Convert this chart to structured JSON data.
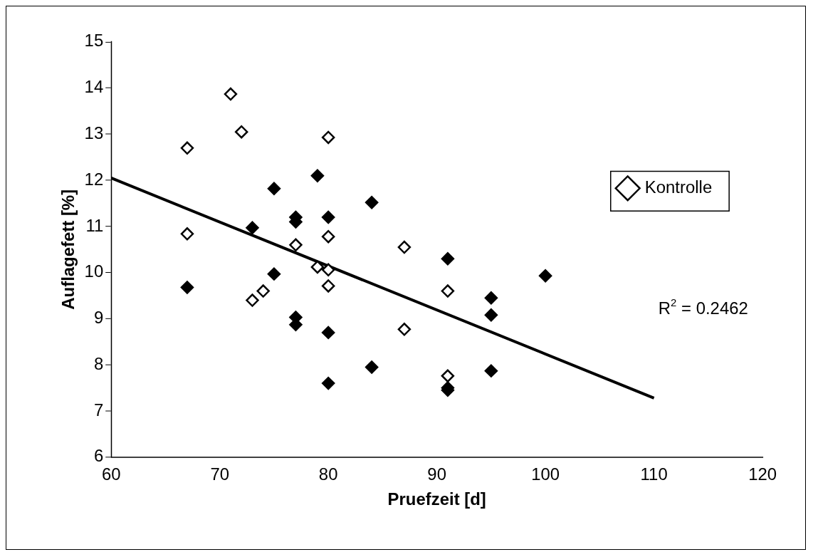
{
  "chart_data": {
    "type": "scatter",
    "xlabel": "Pruefzeit [d]",
    "ylabel": "Auflagefett [%]",
    "xlim": [
      60,
      120
    ],
    "xticks": [
      60,
      70,
      80,
      90,
      100,
      110,
      120
    ],
    "ylim": [
      6,
      15
    ],
    "yticks": [
      6,
      7,
      8,
      9,
      10,
      11,
      12,
      13,
      14,
      15
    ],
    "grid": false,
    "legend": "top right",
    "marker": "diamond",
    "annotations": [
      "R$^{2}$ = 0.2462"
    ],
    "series": [
      {
        "name": "Kontrolle",
        "color": "#ffffff",
        "x": [
          71,
          72,
          67,
          80,
          67,
          77,
          80,
          79,
          80,
          73,
          74,
          80,
          87,
          87,
          91,
          91
        ],
        "values": [
          13.87,
          13.05,
          12.7,
          12.93,
          10.84,
          10.6,
          10.78,
          10.12,
          10.06,
          9.4,
          9.6,
          9.71,
          10.55,
          8.77,
          9.6,
          7.76
        ]
      },
      {
        "color": "#000000",
        "x": [
          75,
          79,
          84,
          73,
          77,
          77,
          80,
          67,
          75,
          77,
          77,
          80,
          84,
          80,
          91,
          91,
          91,
          95,
          95,
          95,
          100
        ],
        "values": [
          11.82,
          12.1,
          11.52,
          10.97,
          11.2,
          11.1,
          11.2,
          9.68,
          9.97,
          9.03,
          8.87,
          8.7,
          7.95,
          7.6,
          10.3,
          7.5,
          7.45,
          9.45,
          9.08,
          7.87,
          9.93
        ]
      },
      {
        "type": "line",
        "color": "#000000",
        "marker": "none",
        "x": [
          60,
          110
        ],
        "values": [
          12.05,
          7.28
        ]
      }
    ]
  }
}
